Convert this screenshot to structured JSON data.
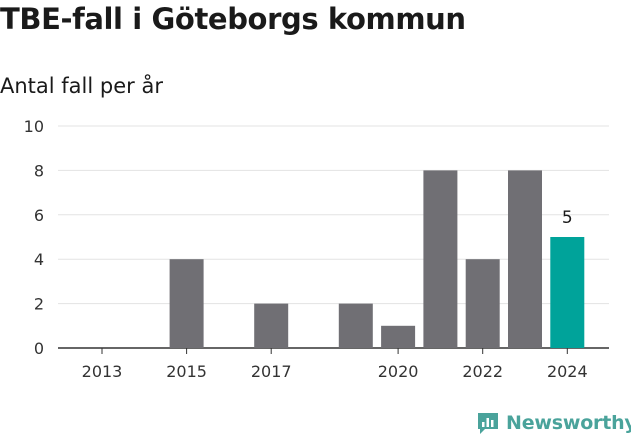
{
  "title": "TBE-fall i Göteborgs kommun",
  "subtitle": "Antal fall per år",
  "brand": {
    "name": "Newsworthy",
    "icon": "newsworthy-logo-icon",
    "color": "#4aa39b"
  },
  "chart_data": {
    "type": "bar",
    "title": "TBE-fall i Göteborgs kommun",
    "subtitle": "Antal fall per år",
    "xlabel": "",
    "ylabel": "",
    "categories": [
      "2013",
      "2014",
      "2015",
      "2016",
      "2017",
      "2018",
      "2019",
      "2020",
      "2021",
      "2022",
      "2023",
      "2024"
    ],
    "values": [
      0,
      0,
      4,
      0,
      2,
      0,
      2,
      1,
      8,
      4,
      8,
      5
    ],
    "x_tick_labels": [
      "2013",
      "2015",
      "2017",
      "2020",
      "2022",
      "2024"
    ],
    "y_ticks": [
      0,
      2,
      4,
      6,
      8,
      10
    ],
    "ylim": [
      0,
      10
    ],
    "grid": true,
    "bar_color": "#706f74",
    "highlight_color": "#00a39a",
    "highlight_category": "2024",
    "data_labels": [
      {
        "category": "2024",
        "value": 5
      }
    ],
    "legend": "none"
  }
}
